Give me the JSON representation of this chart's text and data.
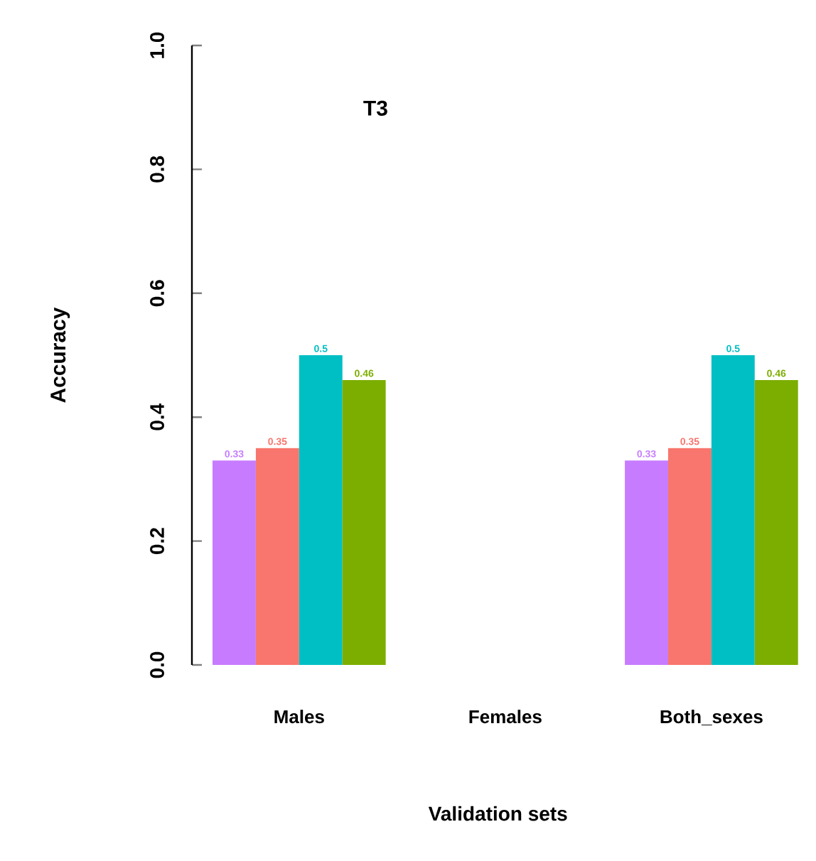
{
  "chart_data": {
    "type": "bar",
    "title": "T3",
    "xlabel": "Validation sets",
    "ylabel": "Accuracy",
    "categories": [
      "Males",
      "Females",
      "Both_sexes"
    ],
    "series": [
      {
        "color": "#c77cff",
        "values": [
          0.33,
          null,
          0.33
        ],
        "value_labels": [
          "0.33",
          null,
          "0.33"
        ]
      },
      {
        "color": "#f8766d",
        "values": [
          0.35,
          null,
          0.35
        ],
        "value_labels": [
          "0.35",
          null,
          "0.35"
        ]
      },
      {
        "color": "#00bfc4",
        "values": [
          0.5,
          null,
          0.5
        ],
        "value_labels": [
          "0.5",
          null,
          "0.5"
        ]
      },
      {
        "color": "#7cae00",
        "values": [
          0.46,
          null,
          0.46
        ],
        "value_labels": [
          "0.46",
          null,
          "0.46"
        ]
      }
    ],
    "ylim": [
      0,
      1
    ],
    "yticks": [
      {
        "value": 0,
        "label": "0.0"
      },
      {
        "value": 0.2,
        "label": "0.2"
      },
      {
        "value": 0.4,
        "label": "0.4"
      },
      {
        "value": 0.6,
        "label": "0.6"
      },
      {
        "value": 0.8,
        "label": "0.8"
      },
      {
        "value": 1,
        "label": "1.0"
      }
    ]
  }
}
